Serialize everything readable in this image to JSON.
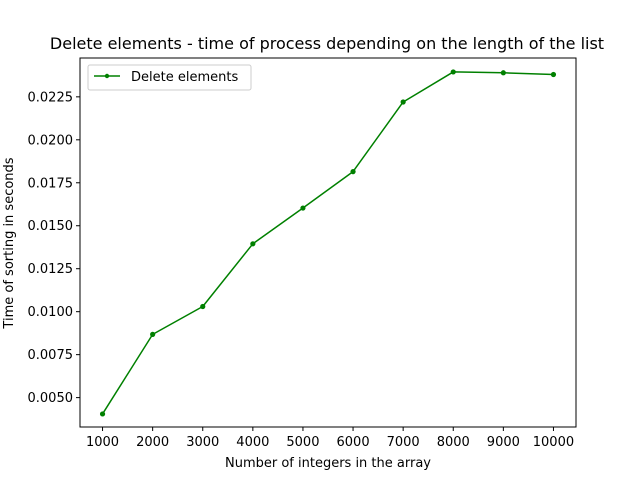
{
  "chart_data": {
    "type": "line",
    "title": "Delete elements - time of process depending on the length of the list",
    "xlabel": "Number of integers in the array",
    "ylabel": "Time of sorting in seconds",
    "x": [
      1000,
      2000,
      3000,
      4000,
      5000,
      6000,
      7000,
      8000,
      9000,
      10000
    ],
    "x_ticks": [
      "1000",
      "2000",
      "3000",
      "4000",
      "5000",
      "6000",
      "7000",
      "8000",
      "9000",
      "10000"
    ],
    "y_ticks": [
      0.005,
      0.0075,
      0.01,
      0.0125,
      0.015,
      0.0175,
      0.02,
      0.0225
    ],
    "y_tick_labels": [
      "0.0050",
      "0.0075",
      "0.0100",
      "0.0125",
      "0.0150",
      "0.0175",
      "0.0200",
      "0.0225"
    ],
    "xlim": [
      550,
      10450
    ],
    "ylim": [
      0.00329,
      0.02476
    ],
    "grid": false,
    "legend_position": "top-left",
    "series": [
      {
        "name": "Delete elements",
        "color": "#008000",
        "marker": "point",
        "values": [
          0.00405,
          0.00868,
          0.0103,
          0.01395,
          0.01603,
          0.01815,
          0.0222,
          0.02395,
          0.0239,
          0.0238
        ]
      }
    ]
  }
}
